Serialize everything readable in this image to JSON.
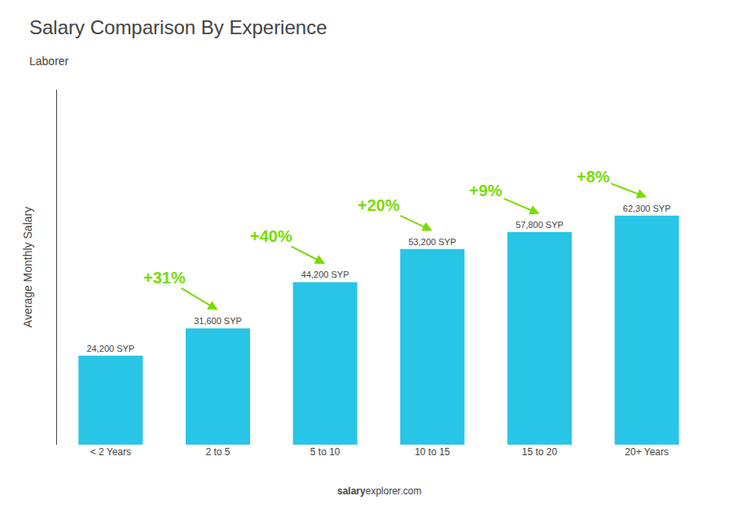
{
  "chart_data": {
    "type": "bar",
    "title": "Salary Comparison By Experience",
    "subtitle": "Laborer",
    "ylabel": "Average Monthly Salary",
    "categories": [
      "< 2 Years",
      "2 to 5",
      "5 to 10",
      "10 to 15",
      "15 to 20",
      "20+ Years"
    ],
    "values": [
      24200,
      31600,
      44200,
      53200,
      57800,
      62300
    ],
    "value_labels": [
      "24,200 SYP",
      "31,600 SYP",
      "44,200 SYP",
      "53,200 SYP",
      "57,800 SYP",
      "62,300 SYP"
    ],
    "data_labels": true,
    "color": "#29c5e6",
    "ylim": [
      0,
      96565
    ],
    "tick_labels": "x",
    "grid": false,
    "annotations": [
      {
        "text": "+31%",
        "from": "< 2 Years",
        "to": "2 to 5",
        "color": "#77dd00"
      },
      {
        "text": "+40%",
        "from": "2 to 5",
        "to": "5 to 10",
        "color": "#77dd00"
      },
      {
        "text": "+20%",
        "from": "5 to 10",
        "to": "10 to 15",
        "color": "#77dd00"
      },
      {
        "text": "+9%",
        "from": "10 to 15",
        "to": "15 to 20",
        "color": "#77dd00"
      },
      {
        "text": "+8%",
        "from": "15 to 20",
        "to": "20+ Years",
        "color": "#77dd00"
      }
    ],
    "footer": [
      "salary",
      "explorer.com"
    ]
  }
}
